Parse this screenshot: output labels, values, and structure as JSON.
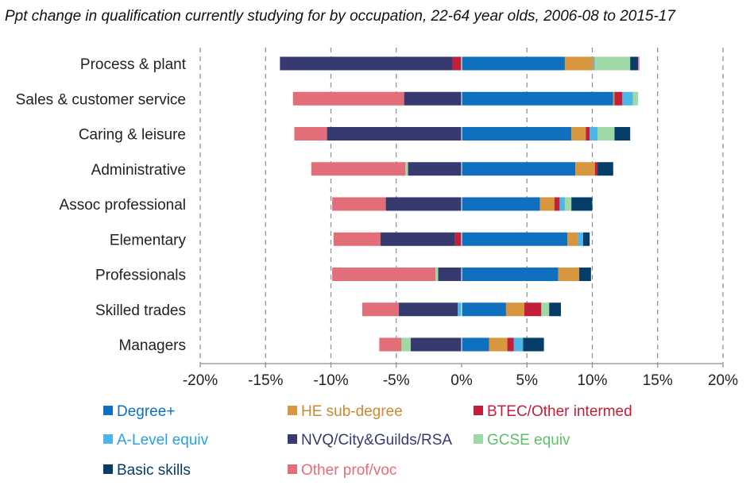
{
  "chart_data": {
    "type": "bar",
    "orientation": "horizontal",
    "stacked": true,
    "diverging": true,
    "title": "Ppt change in qualification currently  studying for by occupation, 22-64 year olds, 2006-08 to 2015-17",
    "xlim": [
      -20,
      20
    ],
    "x_ticks": [
      -20,
      -15,
      -10,
      -5,
      0,
      5,
      10,
      15,
      20
    ],
    "x_tick_labels": [
      "-20%",
      "-15%",
      "-10%",
      "-5%",
      "0%",
      "5%",
      "10%",
      "15%",
      "20%"
    ],
    "grid": "vertical dashed",
    "legend_position": "bottom",
    "categories": [
      "Process & plant",
      "Sales & customer service",
      "Caring & leisure",
      "Administrative",
      "Assoc professional",
      "Elementary",
      "Professionals",
      "Skilled trades",
      "Managers"
    ],
    "series": [
      {
        "name": "Degree+",
        "color": "#1070C0",
        "text_color": "#1070C0",
        "values": [
          7.9,
          11.6,
          8.4,
          8.7,
          6.0,
          8.1,
          7.4,
          3.4,
          2.1
        ]
      },
      {
        "name": "HE sub-degree",
        "color": "#D8963E",
        "text_color": "#C98A33",
        "values": [
          2.2,
          0.1,
          1.1,
          1.5,
          1.1,
          0.8,
          1.6,
          1.4,
          1.4
        ]
      },
      {
        "name": "BTEC/Other intermed",
        "color": "#C0203A",
        "text_color": "#C0203A",
        "values": [
          -0.7,
          0.6,
          0.3,
          0.2,
          0.4,
          -0.5,
          0.0,
          1.3,
          0.5
        ]
      },
      {
        "name": "A-Level equiv",
        "color": "#4EB5E8",
        "text_color": "#2AA0E0",
        "values": [
          0.1,
          0.8,
          0.6,
          0.0,
          0.4,
          0.4,
          0.0,
          -0.3,
          0.7
        ]
      },
      {
        "name": "NVQ/City&Guilds/RSA",
        "color": "#363A6E",
        "text_color": "#363A6E",
        "values": [
          -13.2,
          -4.4,
          -10.3,
          -4.1,
          -5.8,
          -5.7,
          -1.8,
          -4.5,
          -3.9
        ]
      },
      {
        "name": "GCSE equiv",
        "color": "#9FD9A6",
        "text_color": "#5CBF6A",
        "values": [
          2.7,
          0.4,
          1.3,
          -0.2,
          0.5,
          0.0,
          -0.2,
          0.6,
          -0.7
        ]
      },
      {
        "name": "Basic skills",
        "color": "#073E69",
        "text_color": "#073E69",
        "values": [
          0.6,
          0.0,
          1.2,
          1.2,
          1.6,
          0.5,
          0.9,
          0.9,
          1.6
        ]
      },
      {
        "name": "Other prof/voc",
        "color": "#E26E7A",
        "text_color": "#E26E7A",
        "values": [
          0.1,
          -8.5,
          -2.5,
          -7.2,
          -4.1,
          -3.6,
          -7.9,
          -2.8,
          -1.7
        ]
      }
    ]
  }
}
